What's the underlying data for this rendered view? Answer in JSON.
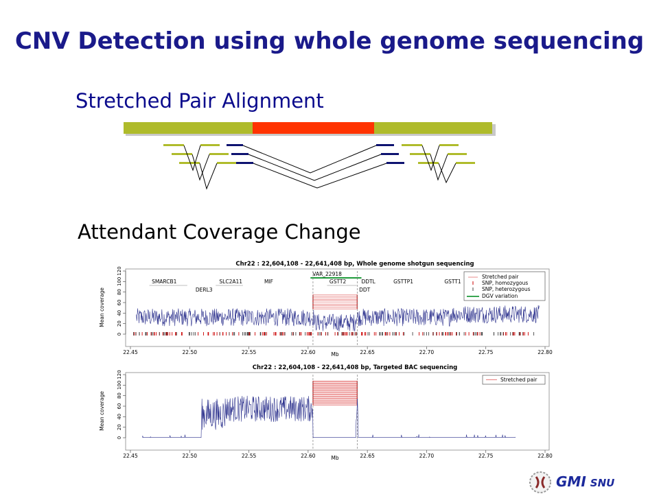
{
  "title": "CNV Detection using whole genome sequencing",
  "section1": "Stretched Pair Alignment",
  "section2": "Attendant Coverage Change",
  "colors": {
    "title": "#1a1a8a",
    "reference_flank": "#afbb2b",
    "reference_deleted": "#ff3300",
    "read_green": "#afbb2b",
    "read_navy": "#0d1270",
    "coverage_line": "#2a2f8c",
    "stretched_pair": "#e05a5a",
    "snp_hom": "#cc0000",
    "snp_het": "#444444",
    "dgv": "#1e9a3a"
  },
  "chart_data": [
    {
      "type": "line",
      "title": "Chr22 : 22,604,108 - 22,641,408 bp, Whole genome shotgun sequencing",
      "xlabel": "Mb",
      "ylabel": "Mean coverage",
      "xlim": [
        22.45,
        22.8
      ],
      "ylim": [
        0,
        120
      ],
      "xticks": [
        "22.45",
        "22.50",
        "22.55",
        "22.60",
        "22.65",
        "22.70",
        "22.75",
        "22.80"
      ],
      "yticks": [
        "0",
        "20",
        "40",
        "60",
        "80",
        "100",
        "120"
      ],
      "stretched_pair_region": [
        22.604108,
        22.641408
      ],
      "dgv_variation": {
        "label": "VAR_22918",
        "range": [
          22.602,
          22.645
        ]
      },
      "genes": [
        {
          "name": "SMARCB1",
          "x": 22.468,
          "row": 0
        },
        {
          "name": "DERL3",
          "x": 22.505,
          "row": 1
        },
        {
          "name": "SLC2A11",
          "x": 22.525,
          "row": 0
        },
        {
          "name": "MIF",
          "x": 22.563,
          "row": 0
        },
        {
          "name": "GSTT2",
          "x": 22.618,
          "row": 0
        },
        {
          "name": "DDTL",
          "x": 22.645,
          "row": 0
        },
        {
          "name": "DDT",
          "x": 22.643,
          "row": 1
        },
        {
          "name": "GSTTP1",
          "x": 22.672,
          "row": 0
        },
        {
          "name": "GSTT1",
          "x": 22.715,
          "row": 0
        }
      ],
      "legend": [
        "Stretched pair",
        "SNP, homozygous",
        "SNP, heterozygous",
        "DGV variation"
      ],
      "legend_position": "top-right"
    },
    {
      "type": "line",
      "title": "Chr22 : 22,604,108 - 22,641,408 bp, Targeted BAC sequencing",
      "xlabel": "Mb",
      "ylabel": "Mean coverage",
      "xlim": [
        22.45,
        22.8
      ],
      "ylim": [
        0,
        120
      ],
      "xticks": [
        "22.45",
        "22.50",
        "22.55",
        "22.60",
        "22.65",
        "22.70",
        "22.75",
        "22.80"
      ],
      "yticks": [
        "0",
        "20",
        "40",
        "60",
        "80",
        "100",
        "120"
      ],
      "stretched_pair_region": [
        22.604108,
        22.641408
      ],
      "coverage_span": [
        22.51,
        22.64
      ],
      "legend": [
        "Stretched pair"
      ],
      "legend_position": "top-right"
    }
  ],
  "footer": {
    "logo": "GMI",
    "sub": "SNU",
    "icon": "chromosome-emblem-icon"
  }
}
